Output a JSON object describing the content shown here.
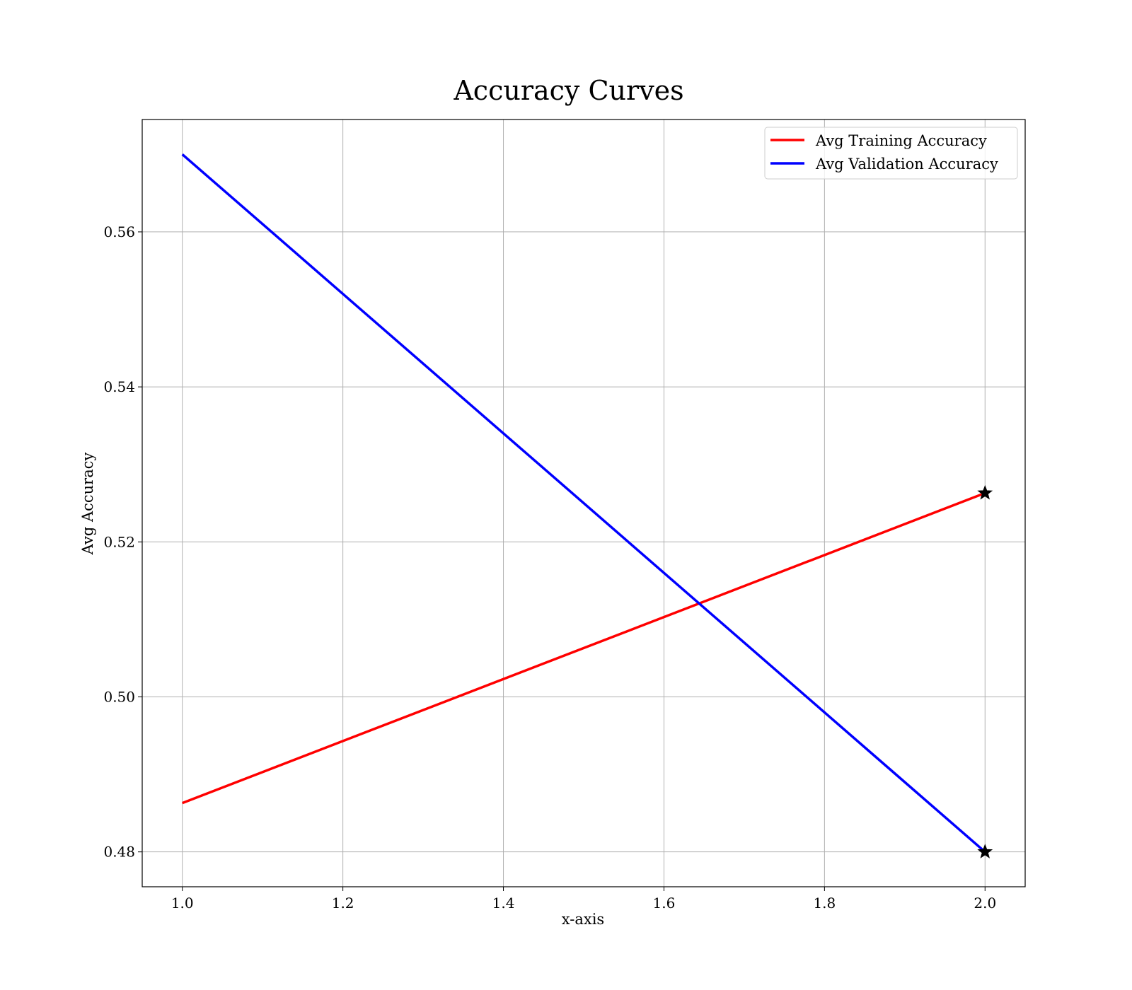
{
  "chart_data": {
    "type": "line",
    "title": "Accuracy Curves",
    "xlabel": "x-axis",
    "ylabel": "Avg Accuracy",
    "xlim": [
      0.95,
      2.05
    ],
    "ylim": [
      0.4755,
      0.5745
    ],
    "x_ticks": [
      "1.0",
      "1.2",
      "1.4",
      "1.6",
      "1.8",
      "2.0"
    ],
    "y_ticks": [
      "0.48",
      "0.50",
      "0.52",
      "0.54",
      "0.56"
    ],
    "grid": true,
    "legend_position": "top-right",
    "x": [
      1.0,
      2.0
    ],
    "series": [
      {
        "name": "Avg Training Accuracy",
        "color": "#ff0000",
        "values": [
          0.4863,
          0.5263
        ],
        "final_marker": "star"
      },
      {
        "name": "Avg Validation Accuracy",
        "color": "#0000ff",
        "values": [
          0.57,
          0.48
        ],
        "final_marker": "star"
      }
    ]
  }
}
